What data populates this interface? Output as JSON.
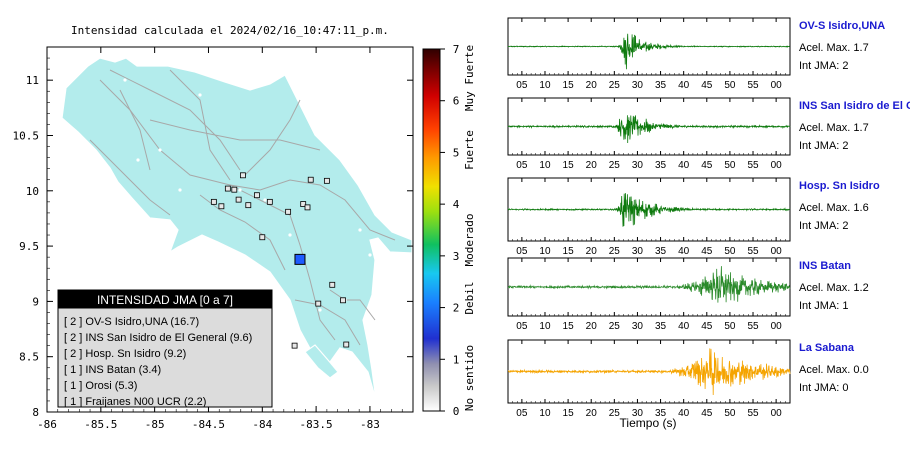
{
  "map": {
    "title": "Intensidad calculada el 2024/02/16_10:47:11_p.m.",
    "land_color": "#b3ecec",
    "road_color": "#a8a8a8",
    "x_ticks": [
      "-86",
      "-85.5",
      "-85",
      "-84.5",
      "-84",
      "-83.5",
      "-83"
    ],
    "y_ticks": [
      "11",
      "10.5",
      "10",
      "9.5",
      "9",
      "8.5",
      "8"
    ],
    "lon_range": [
      -86,
      -82.6
    ],
    "lat_range": [
      8,
      11.3
    ],
    "event": {
      "lon": -83.65,
      "lat": 9.38,
      "color": "#1e5bff"
    },
    "stations": [
      [
        -84.18,
        10.14
      ],
      [
        -84.32,
        10.02
      ],
      [
        -84.26,
        10.01
      ],
      [
        -84.05,
        9.96
      ],
      [
        -84.22,
        9.92
      ],
      [
        -84.13,
        9.87
      ],
      [
        -84.38,
        9.86
      ],
      [
        -84.45,
        9.9
      ],
      [
        -83.93,
        9.9
      ],
      [
        -83.62,
        9.88
      ],
      [
        -83.58,
        9.85
      ],
      [
        -83.76,
        9.81
      ],
      [
        -83.55,
        10.1
      ],
      [
        -83.4,
        10.09
      ],
      [
        -84.0,
        9.58
      ],
      [
        -83.48,
        8.98
      ],
      [
        -83.25,
        9.01
      ],
      [
        -83.35,
        9.15
      ],
      [
        -83.22,
        8.61
      ],
      [
        -83.7,
        8.6
      ]
    ],
    "legend": {
      "header": "INTENSIDAD JMA [0 a 7]",
      "header_bg": "#000000",
      "items": [
        "[ 2 ]  OV-S Isidro,UNA (16.7)",
        "[ 2 ]  INS San Isidro de El General (9.6)",
        "[ 2 ]  Hosp. Sn Isidro (9.2)",
        "[ 1 ]  INS Batan (3.4)",
        "[ 1 ]  Orosi (5.3)",
        "[ 1 ]  Fraijanes N00 UCR (2.2)"
      ]
    }
  },
  "colorbar": {
    "ticks": [
      "7",
      "6",
      "5",
      "4",
      "3",
      "2",
      "1",
      "0"
    ],
    "labels": [
      "Muy Fuerte",
      "Fuerte",
      "Moderado",
      "Debil",
      "No sentido"
    ],
    "range": [
      0,
      7
    ]
  },
  "seismo": {
    "x_ticks": [
      "05",
      "10",
      "15",
      "20",
      "25",
      "30",
      "35",
      "40",
      "45",
      "50",
      "55",
      "00"
    ],
    "x_label": "Tiempo (s)",
    "panels": [
      {
        "name": "OV-S Isidro,UNA",
        "acel": "Acel. Max. 1.7",
        "int": "Int JMA: 2",
        "color": "#0e7a0e",
        "onset": 25.5,
        "peak": 27.5,
        "amp": 0.95,
        "decay": 3.5,
        "noise": 0.02,
        "tick_offset": 0
      },
      {
        "name": "INS San Isidro de El Ge",
        "acel": "Acel. Max. 1.7",
        "int": "Int JMA: 2",
        "color": "#0e7a0e",
        "onset": 24.8,
        "peak": 27.0,
        "amp": 0.95,
        "decay": 4.5,
        "noise": 0.04,
        "tick_offset": 0
      },
      {
        "name": "Hosp. Sn Isidro",
        "acel": "Acel. Max. 1.6",
        "int": "Int JMA: 2",
        "color": "#0e7a0e",
        "onset": 25.0,
        "peak": 27.0,
        "amp": 0.9,
        "decay": 5.0,
        "noise": 0.03,
        "tick_offset": 0
      },
      {
        "name": "INS Batan",
        "acel": "Acel. Max. 1.2",
        "int": "Int JMA: 1",
        "color": "#2a8a2a",
        "onset": 35.5,
        "peak": 48.0,
        "amp": 0.9,
        "decay": 9.0,
        "noise": 0.05,
        "tick_offset": 0
      },
      {
        "name": "La Sabana",
        "acel": "Acel. Max. 0.0",
        "int": "Int JMA: 0",
        "color": "#f5a400",
        "onset": 34.0,
        "peak": 46.0,
        "amp": 0.95,
        "decay": 10.0,
        "noise": 0.05,
        "tick_offset": 0
      }
    ]
  },
  "chart_data": [
    {
      "type": "scatter",
      "title": "Intensidad calculada el 2024/02/16_10:47:11_p.m.",
      "x": [
        -84.18,
        -84.32,
        -84.26,
        -84.05,
        -84.22,
        -84.13,
        -84.38,
        -84.45,
        -83.93,
        -83.62,
        -83.58,
        -83.76,
        -83.55,
        -83.4,
        -84.0,
        -83.48,
        -83.25,
        -83.35,
        -83.22,
        -83.7
      ],
      "y": [
        10.14,
        10.02,
        10.01,
        9.96,
        9.92,
        9.87,
        9.86,
        9.9,
        9.9,
        9.88,
        9.85,
        9.81,
        10.1,
        10.09,
        9.58,
        8.98,
        9.01,
        9.15,
        8.61,
        8.6
      ],
      "xlim": [
        -86,
        -82.6
      ],
      "ylim": [
        8,
        11.3
      ],
      "legend_placement": "bottom-left",
      "colorbar": {
        "range": [
          0,
          7
        ],
        "labels": [
          "Muy Fuerte",
          "Fuerte",
          "Moderado",
          "Debil",
          "No sentido"
        ]
      }
    },
    {
      "type": "line",
      "xlabel": "Tiempo (s)",
      "series": [
        {
          "name": "OV-S Isidro,UNA",
          "peak_accel": 1.7,
          "jma": 2
        },
        {
          "name": "INS San Isidro de El Ge",
          "peak_accel": 1.7,
          "jma": 2
        },
        {
          "name": "Hosp. Sn Isidro",
          "peak_accel": 1.6,
          "jma": 2
        },
        {
          "name": "INS Batan",
          "peak_accel": 1.2,
          "jma": 1
        },
        {
          "name": "La Sabana",
          "peak_accel": 0.0,
          "jma": 0
        }
      ]
    }
  ]
}
